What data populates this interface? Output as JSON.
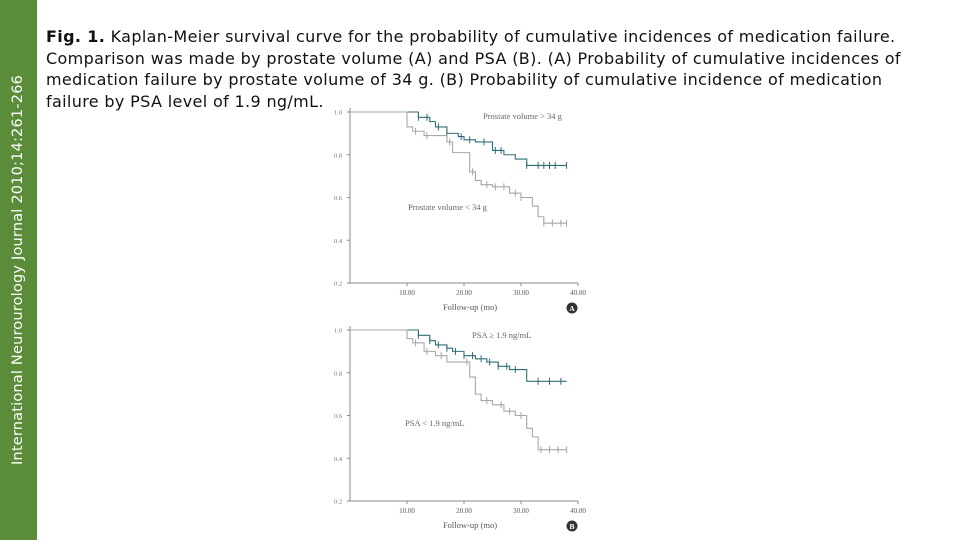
{
  "sidebar": {
    "journal": "International Neurourology Journal 2010;14:261-266"
  },
  "caption": {
    "label": "Fig. 1.",
    "text": "Kaplan-Meier survival curve for the probability of cumulative incidences of medication failure. Comparison was made by prostate volume (A) and PSA (B). (A) Probability of cumulative incidences of medication failure by prostate volume of 34 g. (B) Probability of cumulative incidence of medication failure by PSA level of 1.9 ng/mL."
  },
  "colors": {
    "sidebar": "#5b8c3a",
    "upper_curve": "#2e6d78",
    "lower_curve": "#a7a7a7",
    "axis": "#8a8a8a"
  },
  "chart_data": [
    {
      "type": "line",
      "panel_label": "A",
      "xlabel": "Follow-up (mo)",
      "ylabel": "",
      "xlim": [
        0,
        40
      ],
      "ylim": [
        0.2,
        1.0
      ],
      "x_ticks": [
        "10.00",
        "20.00",
        "30.00",
        "40.00"
      ],
      "y_ticks": [
        "0.2",
        "0.4",
        "0.6",
        "0.8",
        "1.0"
      ],
      "series": [
        {
          "name": "Prostate volume > 34 g",
          "step_x": [
            0,
            12,
            14,
            15,
            17,
            19,
            20,
            22,
            25,
            27,
            29,
            31,
            38
          ],
          "step_y": [
            1.0,
            0.975,
            0.955,
            0.93,
            0.9,
            0.885,
            0.87,
            0.86,
            0.82,
            0.8,
            0.78,
            0.75,
            0.75
          ],
          "censored_x": [
            12,
            13.5,
            15.5,
            17,
            19.5,
            21,
            23.5,
            25.5,
            26.5,
            31,
            33,
            34,
            35,
            36,
            38
          ]
        },
        {
          "name": "Prostate volume < 34 g",
          "step_x": [
            0,
            10,
            11,
            13,
            17,
            18,
            21,
            22,
            23,
            25,
            28,
            30,
            32,
            33,
            34,
            38
          ],
          "step_y": [
            1.0,
            0.93,
            0.91,
            0.89,
            0.86,
            0.81,
            0.72,
            0.68,
            0.66,
            0.65,
            0.62,
            0.6,
            0.56,
            0.51,
            0.48,
            0.48
          ],
          "censored_x": [
            11.5,
            13.5,
            17.5,
            21.5,
            24,
            25.5,
            27,
            29,
            30,
            34,
            35.5,
            37,
            38
          ]
        }
      ]
    },
    {
      "type": "line",
      "panel_label": "B",
      "xlabel": "Follow-up (mo)",
      "ylabel": "",
      "xlim": [
        0,
        40
      ],
      "ylim": [
        0.2,
        1.0
      ],
      "x_ticks": [
        "10.00",
        "20.00",
        "30.00",
        "40.00"
      ],
      "y_ticks": [
        "0.2",
        "0.4",
        "0.6",
        "0.8",
        "1.0"
      ],
      "series": [
        {
          "name": "PSA ≥ 1.9 ng/mL",
          "step_x": [
            0,
            12,
            14,
            15,
            17,
            18,
            20,
            22,
            24,
            26,
            28,
            31,
            38
          ],
          "step_y": [
            1.0,
            0.975,
            0.95,
            0.93,
            0.915,
            0.9,
            0.88,
            0.865,
            0.85,
            0.83,
            0.815,
            0.76,
            0.76
          ],
          "censored_x": [
            12,
            14,
            15.5,
            17,
            18.5,
            20,
            21.5,
            23,
            24.5,
            26,
            27.5,
            29,
            33,
            35,
            37
          ]
        },
        {
          "name": "PSA < 1.9 ng/mL",
          "step_x": [
            0,
            10,
            11,
            13,
            15,
            17,
            21,
            22,
            23,
            25,
            27,
            29,
            31,
            32,
            33,
            38
          ],
          "step_y": [
            1.0,
            0.96,
            0.94,
            0.9,
            0.88,
            0.85,
            0.78,
            0.7,
            0.67,
            0.65,
            0.62,
            0.6,
            0.54,
            0.5,
            0.44,
            0.44
          ],
          "censored_x": [
            11.5,
            13.5,
            16,
            20.5,
            24,
            26.5,
            28,
            30,
            33.5,
            35,
            36.5,
            38
          ]
        }
      ]
    }
  ]
}
